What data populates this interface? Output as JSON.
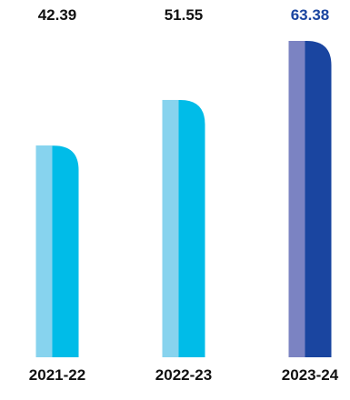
{
  "chart_data": {
    "type": "bar",
    "categories": [
      "2021-22",
      "2022-23",
      "2023-24"
    ],
    "values": [
      42.39,
      51.55,
      63.38
    ],
    "value_labels": [
      "42.39",
      "51.55",
      "63.38"
    ],
    "title": "",
    "xlabel": "",
    "ylabel": "",
    "ylim": [
      0,
      63.38
    ],
    "grid": false,
    "legend": "none",
    "bar_colors": [
      {
        "light": "#87D3EE",
        "dark": "#00BCE8",
        "label": "#111111"
      },
      {
        "light": "#87D3EE",
        "dark": "#00BCE8",
        "label": "#111111"
      },
      {
        "light": "#7B83C2",
        "dark": "#1A45A0",
        "label": "#1A45A0"
      }
    ],
    "category_label_color": "#111111"
  }
}
